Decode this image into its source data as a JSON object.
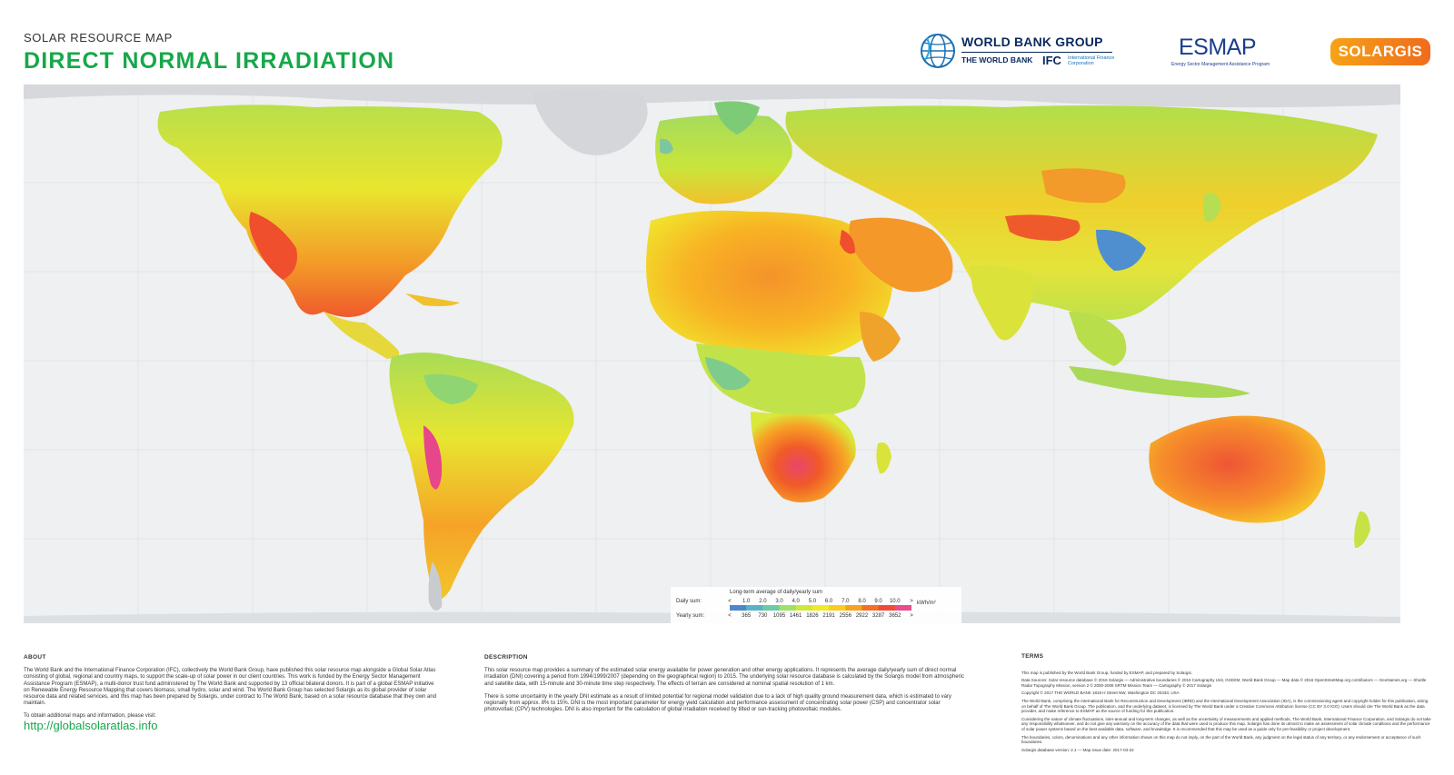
{
  "header": {
    "subtitle": "SOLAR RESOURCE MAP",
    "title": "DIRECT NORMAL IRRADIATION"
  },
  "logos": {
    "wbg_title": "WORLD BANK GROUP",
    "wbg_sub": "THE WORLD BANK",
    "wbg_ifc": "IFC",
    "wbg_ifc_sub": "International Finance Corporation",
    "esmap_name": "ESMAP",
    "esmap_sub": "Energy Sector Management Assistance Program",
    "solargis": "SOLARGIS"
  },
  "map": {
    "icons": [
      "globe-icon"
    ],
    "colors": {
      "ocean": "#eef0f2",
      "ice": "#d6d8db",
      "low": "#4fa7d6",
      "mid": "#b6e13c",
      "high": "#ffc61a",
      "very_high": "#f2541f",
      "extreme": "#e84d8a"
    }
  },
  "legend": {
    "title": "Long-term average of daily/yearly sum",
    "daily_label": "Daily sum:",
    "yearly_label": "Yearly sum:",
    "unit": "kWh/m²",
    "daily": [
      "<",
      "1.0",
      "2.0",
      "3.0",
      "4.0",
      "5.0",
      "6.0",
      "7.0",
      "8.0",
      "9.0",
      "10.0",
      ">"
    ],
    "yearly": [
      "<",
      "365",
      "730",
      "1095",
      "1461",
      "1826",
      "2191",
      "2556",
      "2922",
      "3287",
      "3652",
      ">"
    ],
    "colors": [
      "#4f86c9",
      "#56b3c9",
      "#6dcba3",
      "#9ee06b",
      "#cfe93b",
      "#f2e927",
      "#fbcb21",
      "#f7a322",
      "#f27124",
      "#ef4b3c",
      "#e84d8a"
    ]
  },
  "footer": {
    "about": {
      "heading": "ABOUT",
      "text1": "The World Bank and the International Finance Corporation (IFC), collectively the World Bank Group, have published this solar resource map alongside a Global Solar Atlas consisting of global, regional and country maps, to support the scale-up of solar power in our client countries. This work is funded by the Energy Sector Management Assistance Program (ESMAP), a multi-donor trust fund administered by The World Bank and supported by 13 official bilateral donors. It is part of a global ESMAP initiative on Renewable Energy Resource Mapping that covers biomass, small hydro, solar and wind. The World Bank Group has selected Solargis as its global provider of solar resource data and related services, and this map has been prepared by Solargis, under contract to The World Bank, based on a solar resource database that they own and maintain.",
      "text2": "To obtain additional maps and information, please visit:",
      "link": "http://globalsolaratlas.info"
    },
    "description": {
      "heading": "DESCRIPTION",
      "text1": "This solar resource map provides a summary of the estimated solar energy available for power generation and other energy applications. It represents the average daily/yearly sum of direct normal irradiation (DNI) covering a period from 1994/1999/2007 (depending on the geographical region) to 2015. The underlying solar resource database is calculated by the Solargis model from atmospheric and satellite data, with 15-minute and 30-minute time step respectively. The effects of terrain are considered at nominal spatial resolution of 1 km.",
      "text2": "There is some uncertainty in the yearly DNI estimate as a result of limited potential for regional model validation due to a lack of high quality ground measurement data, which is estimated to vary regionally from approx. 8% to 15%. DNI is the most important parameter for energy yield calculation and performance assessment of concentrating solar power (CSP) and concentrator solar photovoltaic (CPV) technologies. DNI is also important for the calculation of global irradiation received by tilted or sun-tracking photovoltaic modules."
    },
    "terms": {
      "heading": "TERMS",
      "text1": "This map is published by the World Bank Group, funded by ESMAP, and prepared by Solargis.",
      "text2": "Data Sources: Solar resource database © 2016 Solargis — Administrative boundaries © 2016 Cartography Unit, GSD/IM, World Bank Group — Map data © 2016 OpenStreetMap.org contributors — GeoNames.org — Shuttle Radar Topography Mission, version 2 © 2000-2006 SRTM Mission Team — Cartography © 2017 Solargis",
      "text3": "Copyright © 2017 THE WORLD BANK 1818 H Street NW, Washington DC 20433, USA",
      "text4": "The World Bank, comprising the International Bank for Reconstruction and Development (IBRD) and the International Development Association (IDA), is the commissioning agent and copyright holder for this publication, acting on behalf of The World Bank Group. The publication, and the underlying dataset, is licensed by The World Bank under a Creative Commons Attribution license (CC BY 3.0 IGO). Users should cite The World Bank as the data provider, and make reference to ESMAP as the source of funding for this publication.",
      "text5": "Considering the nature of climate fluctuations, inter-annual and long-term changes, as well as the uncertainty of measurements and applied methods, The World Bank, International Finance Corporation, and Solargis do not take any responsibility whatsoever, and do not give any warranty on the accuracy of the data that were used to produce this map. Solargis has done its utmost to make an assessment of solar climate conditions and the performance of solar power systems based on the best available data, software, and knowledge. It is recommended that this map be used as a guide only for pre-feasibility or project development.",
      "text6": "The boundaries, colors, denominations and any other information shown on this map do not imply, on the part of the World Bank, any judgment on the legal status of any territory, or any endorsement or acceptance of such boundaries.",
      "text7": "Solargis database version: 2.1 — Map issue date: 2017-03-22"
    }
  }
}
